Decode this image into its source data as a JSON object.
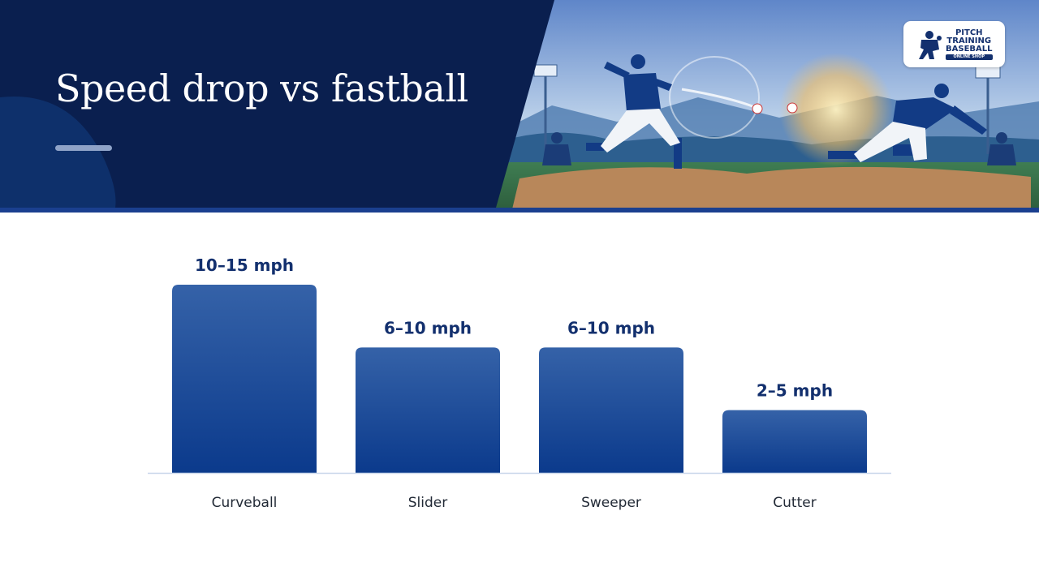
{
  "header": {
    "title": "Speed drop vs fastball",
    "logo": {
      "line1": "PITCH",
      "line2": "TRAINING",
      "line3": "BASEBALL",
      "tagline": "ONLINE SHOP",
      "icon": "pitcher-silhouette-icon"
    },
    "illustration": "two-baseball-pitchers-stadium-illustration"
  },
  "colors": {
    "header_navy": "#0a1f4f",
    "bar_top": "#3562a8",
    "bar_bottom": "#0b3a8c",
    "label_navy": "#13306e",
    "baseline": "#c8d6ea"
  },
  "chart_data": {
    "type": "bar",
    "title": "Speed drop vs fastball",
    "categories": [
      "Curveball",
      "Slider",
      "Sweeper",
      "Cutter"
    ],
    "series": [
      {
        "low": [
          10,
          6,
          6,
          2
        ],
        "high": [
          15,
          10,
          10,
          5
        ]
      }
    ],
    "data_labels": [
      "10–15 mph",
      "6–10 mph",
      "6–10 mph",
      "2–5 mph"
    ],
    "values": [
      15,
      10,
      10,
      5
    ],
    "ylim": [
      0,
      15
    ],
    "unit": "mph",
    "xlabel": "",
    "ylabel": "",
    "grid": false,
    "legend": "none"
  }
}
